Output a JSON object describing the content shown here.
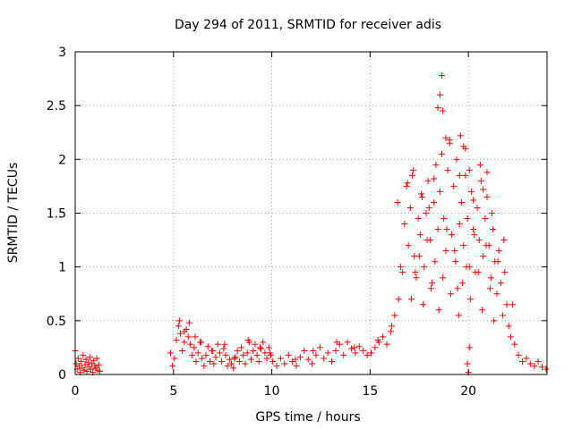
{
  "chart_data": {
    "type": "scatter",
    "title": "Day 294 of 2011, SRMTID for receiver adis",
    "xlabel": "GPS time / hours",
    "ylabel": "SRMTID / TECUs",
    "xlim": [
      0,
      24
    ],
    "ylim": [
      0,
      3
    ],
    "xticks": [
      0,
      5,
      10,
      15,
      20
    ],
    "xtick_labels": [
      "0",
      "5",
      "10",
      "15",
      "20"
    ],
    "yticks": [
      0,
      0.5,
      1,
      1.5,
      2,
      2.5,
      3
    ],
    "ytick_labels": [
      "0",
      "0.5",
      "1",
      "1.5",
      "2",
      "2.5",
      "3"
    ],
    "grid": true,
    "marker": "plus",
    "series": [
      {
        "name": "SRMTID",
        "color": "#ff0000",
        "x": [
          0.0,
          0.05,
          0.1,
          0.15,
          0.2,
          0.25,
          0.3,
          0.35,
          0.4,
          0.45,
          0.5,
          0.55,
          0.6,
          0.65,
          0.7,
          0.75,
          0.8,
          0.85,
          0.9,
          0.95,
          1.0,
          1.05,
          1.1,
          1.15,
          1.2,
          1.25,
          4.85,
          4.95,
          5.05,
          5.15,
          5.25,
          5.35,
          5.45,
          5.55,
          5.65,
          5.75,
          5.85,
          5.95,
          6.05,
          6.15,
          6.25,
          6.35,
          6.45,
          6.55,
          6.65,
          6.75,
          6.85,
          6.95,
          7.05,
          7.15,
          7.25,
          7.35,
          7.45,
          7.55,
          7.65,
          7.75,
          7.85,
          7.95,
          8.05,
          8.15,
          8.25,
          8.35,
          8.45,
          8.55,
          8.65,
          8.75,
          8.85,
          8.95,
          9.05,
          9.15,
          9.25,
          9.35,
          9.45,
          9.55,
          9.65,
          9.75,
          9.85,
          9.95,
          10.05,
          10.25,
          10.45,
          10.65,
          10.85,
          11.05,
          11.25,
          11.45,
          11.65,
          11.85,
          12.05,
          12.25,
          12.45,
          12.65,
          12.85,
          13.05,
          13.25,
          13.45,
          13.65,
          13.85,
          14.05,
          14.25,
          14.45,
          14.65,
          14.85,
          15.05,
          15.25,
          15.45,
          15.65,
          15.85,
          16.05,
          16.25,
          16.45,
          16.65,
          16.75,
          16.85,
          16.95,
          17.05,
          17.15,
          17.25,
          17.35,
          17.45,
          17.55,
          17.65,
          17.75,
          17.85,
          17.95,
          18.05,
          18.15,
          18.25,
          18.35,
          18.45,
          18.55,
          18.65,
          18.75,
          18.85,
          18.95,
          19.05,
          19.15,
          19.25,
          19.35,
          19.45,
          19.55,
          19.65,
          19.75,
          19.85,
          19.95,
          20.05,
          20.15,
          20.25,
          20.35,
          20.45,
          20.55,
          20.65,
          20.75,
          20.85,
          20.95,
          21.05,
          21.15,
          21.25,
          21.35,
          21.45,
          21.55,
          21.65,
          21.75,
          21.85,
          21.95,
          22.05,
          22.15,
          22.35,
          22.55,
          22.75,
          22.95,
          23.15,
          23.35,
          23.55,
          23.75,
          23.95,
          17.1,
          17.3,
          17.5,
          17.7,
          17.9,
          18.1,
          18.3,
          18.5,
          18.7,
          18.9,
          19.1,
          19.3,
          19.5,
          19.7,
          19.9,
          20.1,
          20.3,
          20.5,
          20.7,
          20.9,
          21.1,
          21.3,
          21.5,
          18.45,
          18.55,
          18.65,
          18.7,
          18.85,
          19.05,
          19.4,
          19.55,
          19.6,
          19.85,
          20.05,
          20.6,
          20.75,
          16.55,
          16.4,
          16.9,
          17.2,
          17.6,
          18.0,
          18.25,
          19.75,
          20.25,
          20.95,
          21.2,
          21.8,
          22.25,
          5.3,
          5.55,
          5.8,
          6.1,
          6.4,
          7.0,
          7.6,
          8.1,
          8.8,
          9.4,
          9.9,
          11.2,
          12.1,
          13.3,
          14.2,
          15.4,
          16.1,
          19.95,
          20.0,
          20.05
        ],
        "y": [
          0.22,
          0.1,
          0.05,
          0.15,
          0.08,
          0.02,
          0.12,
          0.06,
          0.18,
          0.04,
          0.09,
          0.14,
          0.03,
          0.11,
          0.07,
          0.16,
          0.05,
          0.1,
          0.02,
          0.13,
          0.08,
          0.06,
          0.15,
          0.04,
          0.09,
          0.03,
          0.2,
          0.08,
          0.15,
          0.32,
          0.45,
          0.38,
          0.22,
          0.3,
          0.42,
          0.35,
          0.28,
          0.18,
          0.25,
          0.12,
          0.2,
          0.3,
          0.15,
          0.08,
          0.18,
          0.26,
          0.12,
          0.22,
          0.1,
          0.16,
          0.28,
          0.2,
          0.12,
          0.24,
          0.18,
          0.08,
          0.14,
          0.1,
          0.06,
          0.16,
          0.22,
          0.12,
          0.25,
          0.18,
          0.1,
          0.2,
          0.3,
          0.14,
          0.22,
          0.28,
          0.18,
          0.12,
          0.24,
          0.3,
          0.2,
          0.15,
          0.25,
          0.18,
          0.12,
          0.08,
          0.15,
          0.1,
          0.18,
          0.12,
          0.08,
          0.16,
          0.22,
          0.14,
          0.1,
          0.18,
          0.25,
          0.15,
          0.2,
          0.12,
          0.22,
          0.28,
          0.18,
          0.3,
          0.24,
          0.2,
          0.26,
          0.22,
          0.18,
          0.2,
          0.25,
          0.3,
          0.35,
          0.28,
          0.4,
          0.55,
          0.7,
          0.95,
          1.4,
          1.75,
          1.2,
          1.55,
          1.85,
          1.1,
          0.9,
          1.45,
          1.3,
          1.65,
          1.0,
          1.5,
          1.8,
          1.25,
          0.85,
          1.6,
          1.95,
          1.35,
          1.7,
          2.05,
          1.45,
          1.15,
          1.9,
          2.15,
          1.3,
          1.75,
          1.05,
          0.8,
          1.4,
          1.6,
          1.2,
          1.85,
          1.45,
          1.0,
          1.7,
          1.35,
          0.95,
          1.55,
          1.25,
          1.8,
          1.1,
          1.45,
          1.65,
          1.2,
          0.9,
          1.35,
          1.05,
          0.75,
          1.15,
          0.85,
          0.55,
          0.95,
          0.65,
          0.45,
          0.35,
          0.28,
          0.18,
          0.12,
          0.15,
          0.1,
          0.08,
          0.12,
          0.07,
          0.05,
          0.7,
          0.95,
          1.1,
          0.65,
          1.25,
          0.8,
          1.05,
          0.6,
          0.9,
          1.35,
          0.75,
          1.15,
          0.55,
          0.85,
          1.0,
          0.7,
          1.3,
          0.95,
          0.6,
          1.2,
          0.8,
          0.5,
          1.05,
          2.48,
          2.6,
          2.78,
          2.45,
          2.2,
          2.18,
          2.0,
          1.85,
          2.22,
          2.1,
          1.9,
          1.95,
          1.72,
          1.0,
          1.6,
          1.78,
          1.9,
          1.68,
          1.55,
          1.82,
          2.12,
          1.62,
          1.88,
          1.5,
          1.25,
          0.65,
          0.5,
          0.4,
          0.48,
          0.35,
          0.3,
          0.22,
          0.28,
          0.15,
          0.32,
          0.25,
          0.2,
          0.14,
          0.22,
          0.3,
          0.25,
          0.32,
          0.45,
          0.1,
          0.02,
          0.25
        ]
      }
    ]
  }
}
